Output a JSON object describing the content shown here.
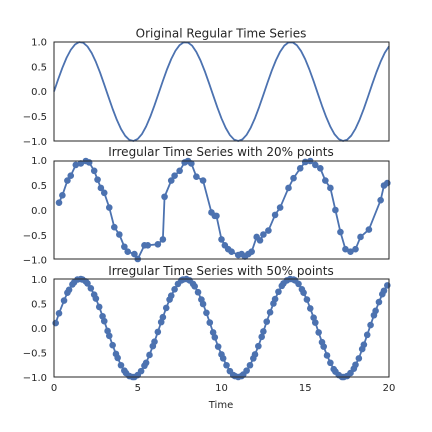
{
  "chart_data": [
    {
      "type": "line",
      "title": "Original Regular Time Series",
      "xlim": [
        0,
        20
      ],
      "ylim": [
        -1.0,
        1.0
      ],
      "yticks": [
        1.0,
        0.5,
        0.0,
        -0.5,
        -1.0
      ],
      "ytick_labels": [
        "1.0",
        "0.5",
        "0.0",
        "−0.5",
        "−1.0"
      ],
      "markers": false,
      "series": [
        {
          "x": [
            0,
            0.25,
            0.5,
            0.75,
            1,
            1.25,
            1.5,
            1.75,
            2,
            2.25,
            2.5,
            2.75,
            3,
            3.25,
            3.5,
            3.75,
            4,
            4.25,
            4.5,
            4.75,
            5,
            5.25,
            5.5,
            5.75,
            6,
            6.25,
            6.5,
            6.75,
            7,
            7.25,
            7.5,
            7.75,
            8,
            8.25,
            8.5,
            8.75,
            9,
            9.25,
            9.5,
            9.75,
            10,
            10.25,
            10.5,
            10.75,
            11,
            11.25,
            11.5,
            11.75,
            12,
            12.25,
            12.5,
            12.75,
            13,
            13.25,
            13.5,
            13.75,
            14,
            14.25,
            14.5,
            14.75,
            15,
            15.25,
            15.5,
            15.75,
            16,
            16.25,
            16.5,
            16.75,
            17,
            17.25,
            17.5,
            17.75,
            18,
            18.25,
            18.5,
            18.75,
            19,
            19.25,
            19.5,
            19.75,
            20
          ],
          "y": [
            0.0,
            0.247,
            0.479,
            0.682,
            0.841,
            0.949,
            0.997,
            0.984,
            0.909,
            0.778,
            0.598,
            0.382,
            0.141,
            -0.108,
            -0.351,
            -0.572,
            -0.757,
            -0.895,
            -0.978,
            -0.999,
            -0.959,
            -0.859,
            -0.706,
            -0.508,
            -0.279,
            -0.033,
            0.215,
            0.45,
            0.657,
            0.823,
            0.938,
            0.994,
            0.989,
            0.925,
            0.798,
            0.625,
            0.412,
            0.174,
            -0.075,
            -0.32,
            -0.544,
            -0.735,
            -0.88,
            -0.971,
            -1.0,
            -0.967,
            -0.875,
            -0.728,
            -0.537,
            -0.311,
            -0.066,
            0.182,
            0.42,
            0.631,
            0.804,
            0.927,
            0.991,
            0.993,
            0.934,
            0.817,
            0.65,
            0.442,
            0.208,
            -0.041,
            -0.288,
            -0.516,
            -0.712,
            -0.864,
            -0.961,
            -0.999,
            -0.974,
            -0.89,
            -0.751,
            -0.565,
            -0.344,
            -0.101,
            0.15,
            0.389,
            0.603,
            0.783,
            0.913
          ]
        }
      ]
    },
    {
      "type": "line",
      "title": "Irregular Time Series with 20% points",
      "xlim": [
        0,
        20
      ],
      "ylim": [
        -1.0,
        1.0
      ],
      "yticks": [
        1.0,
        0.5,
        0.0,
        -0.5,
        -1.0
      ],
      "ytick_labels": [
        "1.0",
        "0.5",
        "0.0",
        "−0.5",
        "−1.0"
      ],
      "markers": true,
      "series": [
        {
          "x": [
            0.3,
            0.5,
            0.8,
            1.0,
            1.3,
            1.6,
            1.9,
            2.1,
            2.4,
            2.6,
            2.8,
            3.0,
            3.3,
            3.6,
            3.9,
            4.2,
            4.4,
            4.8,
            5.0,
            5.4,
            5.6,
            6.2,
            6.5,
            6.6,
            7.0,
            7.2,
            7.5,
            7.8,
            8.0,
            8.2,
            8.5,
            8.9,
            9.4,
            9.6,
            9.7,
            10.0,
            10.2,
            10.4,
            10.6,
            11.0,
            11.2,
            11.4,
            11.6,
            11.8,
            12.1,
            12.3,
            12.5,
            12.8,
            13.2,
            13.5,
            14.0,
            14.3,
            14.7,
            15.0,
            15.3,
            15.6,
            15.9,
            16.2,
            16.5,
            16.8,
            17.1,
            17.4,
            17.7,
            18.0,
            18.3,
            18.8,
            19.5,
            19.7,
            19.9
          ],
          "y": [
            0.15,
            0.3,
            0.6,
            0.7,
            0.92,
            0.95,
            1.0,
            0.97,
            0.8,
            0.62,
            0.45,
            0.35,
            0.05,
            -0.35,
            -0.5,
            -0.75,
            -0.85,
            -0.9,
            -1.0,
            -0.72,
            -0.72,
            -0.7,
            -0.6,
            0.27,
            0.6,
            0.7,
            0.8,
            0.97,
            1.0,
            0.95,
            0.68,
            0.6,
            -0.05,
            -0.12,
            -0.12,
            -0.6,
            -0.72,
            -0.8,
            -0.85,
            -0.92,
            -0.9,
            -0.95,
            -0.9,
            -0.85,
            -0.55,
            -0.62,
            -0.5,
            -0.42,
            -0.1,
            0.05,
            0.45,
            0.65,
            0.85,
            0.98,
            1.0,
            0.92,
            0.85,
            0.6,
            0.45,
            0.0,
            -0.45,
            -0.8,
            -0.85,
            -0.8,
            -0.55,
            -0.4,
            0.2,
            0.5,
            0.55
          ]
        }
      ]
    },
    {
      "type": "line",
      "title": "Irregular Time Series with 50% points",
      "xlim": [
        0,
        20
      ],
      "ylim": [
        -1.0,
        1.0
      ],
      "yticks": [
        1.0,
        0.5,
        0.0,
        -0.5,
        -1.0
      ],
      "ytick_labels": [
        "1.0",
        "0.5",
        "0.0",
        "−0.5",
        "−1.0"
      ],
      "xticks": [
        0,
        5,
        10,
        15,
        20
      ],
      "xtick_labels": [
        "0",
        "5",
        "10",
        "15",
        "20"
      ],
      "xlabel": "Time",
      "markers": true,
      "series": [
        {
          "x": [
            0.1,
            0.3,
            0.6,
            0.8,
            0.9,
            1.1,
            1.2,
            1.4,
            1.6,
            1.7,
            1.9,
            2.0,
            2.2,
            2.4,
            2.5,
            2.7,
            2.9,
            3.0,
            3.2,
            3.3,
            3.5,
            3.7,
            3.8,
            4.0,
            4.2,
            4.3,
            4.5,
            4.7,
            4.8,
            5.0,
            5.2,
            5.4,
            5.5,
            5.7,
            5.9,
            6.0,
            6.2,
            6.4,
            6.5,
            6.7,
            6.9,
            7.0,
            7.2,
            7.4,
            7.6,
            7.7,
            7.9,
            8.1,
            8.3,
            8.4,
            8.6,
            8.8,
            8.9,
            9.1,
            9.3,
            9.5,
            9.6,
            9.8,
            10.0,
            10.1,
            10.3,
            10.5,
            10.7,
            10.8,
            11.0,
            11.2,
            11.3,
            11.5,
            11.7,
            11.9,
            12.0,
            12.2,
            12.4,
            12.5,
            12.7,
            12.9,
            13.1,
            13.2,
            13.4,
            13.6,
            13.7,
            13.9,
            14.1,
            14.3,
            14.4,
            14.6,
            14.8,
            14.9,
            15.1,
            15.3,
            15.5,
            15.6,
            15.8,
            16.0,
            16.1,
            16.3,
            16.5,
            16.7,
            16.8,
            17.0,
            17.2,
            17.3,
            17.5,
            17.7,
            17.9,
            18.0,
            18.2,
            18.4,
            18.5,
            18.7,
            18.9,
            19.1,
            19.2,
            19.4,
            19.6,
            19.7,
            19.9
          ],
          "y": [
            0.1,
            0.3,
            0.56,
            0.72,
            0.78,
            0.89,
            0.93,
            0.99,
            1.0,
            0.99,
            0.95,
            0.91,
            0.81,
            0.68,
            0.6,
            0.43,
            0.24,
            0.14,
            -0.06,
            -0.16,
            -0.35,
            -0.53,
            -0.61,
            -0.76,
            -0.87,
            -0.92,
            -0.98,
            -1.0,
            -1.0,
            -0.96,
            -0.88,
            -0.77,
            -0.71,
            -0.55,
            -0.37,
            -0.28,
            -0.08,
            0.12,
            0.22,
            0.41,
            0.58,
            0.66,
            0.79,
            0.9,
            0.97,
            0.99,
            1.0,
            0.97,
            0.9,
            0.85,
            0.73,
            0.58,
            0.49,
            0.31,
            0.11,
            -0.09,
            -0.19,
            -0.38,
            -0.54,
            -0.62,
            -0.76,
            -0.88,
            -0.96,
            -0.98,
            -1.0,
            -0.98,
            -0.95,
            -0.87,
            -0.76,
            -0.62,
            -0.54,
            -0.37,
            -0.18,
            -0.07,
            0.13,
            0.32,
            0.5,
            0.59,
            0.74,
            0.86,
            0.91,
            0.97,
            1.0,
            0.99,
            0.97,
            0.9,
            0.79,
            0.72,
            0.58,
            0.4,
            0.21,
            0.11,
            -0.09,
            -0.29,
            -0.38,
            -0.56,
            -0.71,
            -0.84,
            -0.89,
            -0.96,
            -1.0,
            -1.0,
            -0.98,
            -0.92,
            -0.83,
            -0.75,
            -0.62,
            -0.43,
            -0.34,
            -0.14,
            0.06,
            0.26,
            0.35,
            0.53,
            0.69,
            0.76,
            0.87
          ]
        }
      ]
    }
  ],
  "colors": {
    "series": "#4c72b0",
    "frame": "#262626",
    "text": "#262626"
  }
}
